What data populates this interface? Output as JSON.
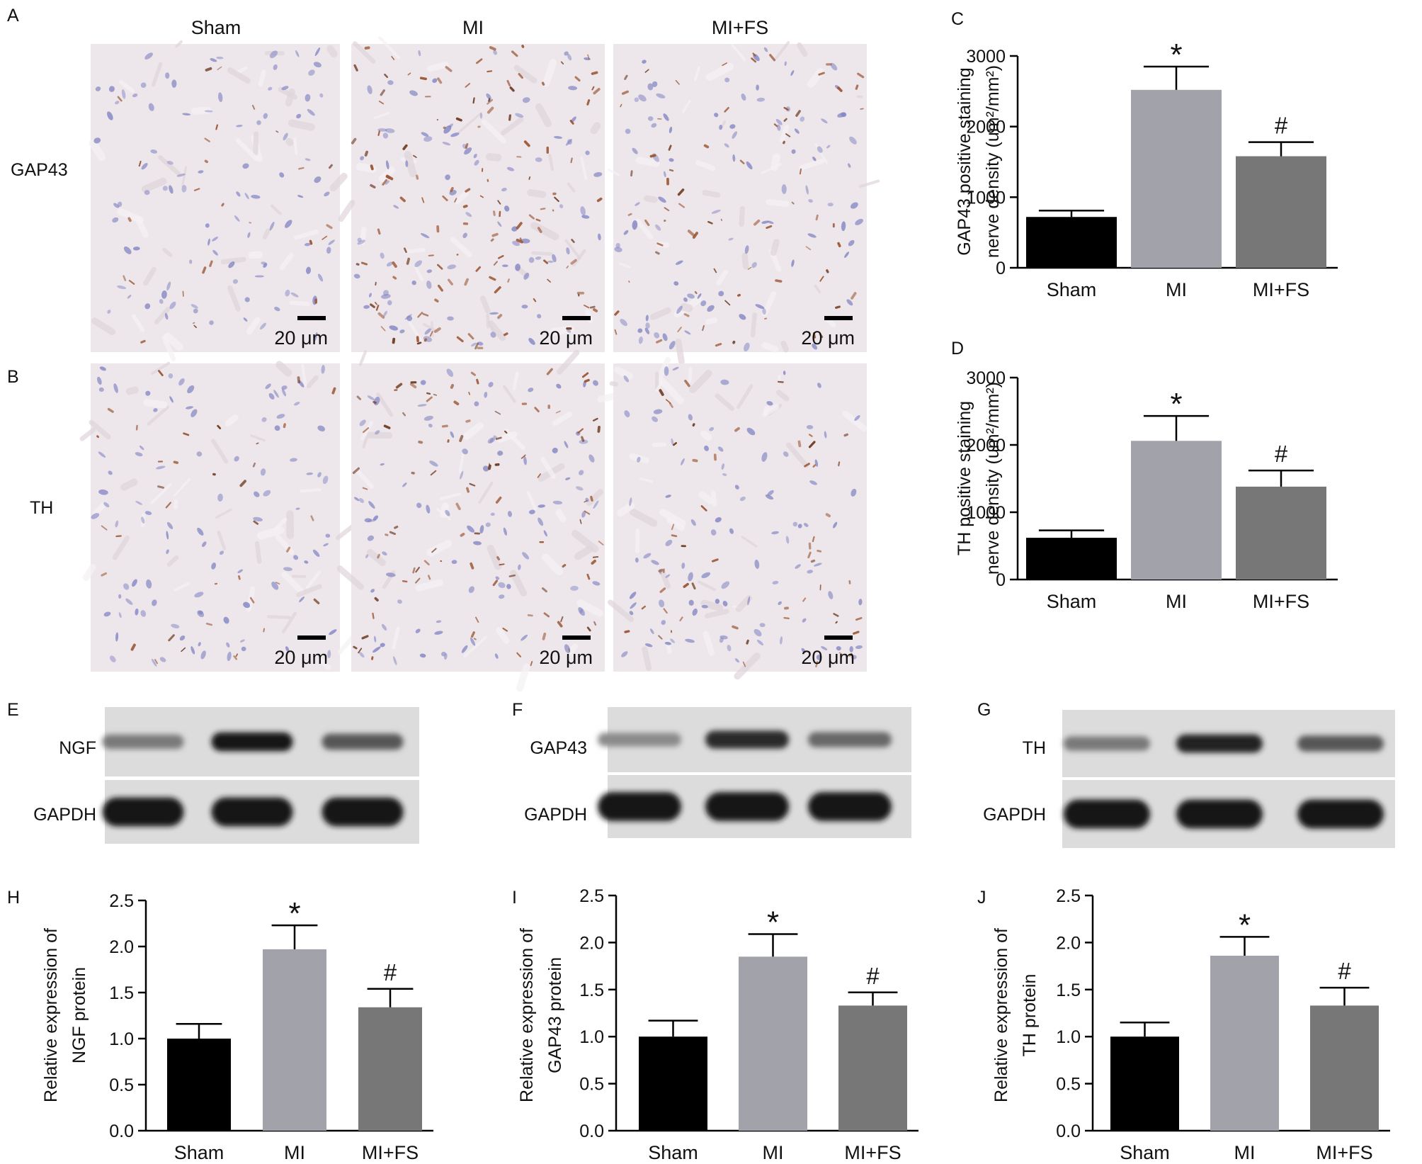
{
  "micrographs": {
    "panel_a": {
      "letter": "A",
      "row_label": "GAP43"
    },
    "panel_b": {
      "letter": "B",
      "row_label": "TH"
    },
    "columns": [
      "Sham",
      "MI",
      "MI+FS"
    ],
    "scale_label": "20 μm",
    "stain_density": {
      "A": [
        0.15,
        0.75,
        0.4
      ],
      "B": [
        0.2,
        0.55,
        0.3
      ]
    }
  },
  "blots": [
    {
      "letter": "E",
      "target": "NGF",
      "loading": "GAPDH",
      "target_intensity": [
        0.45,
        1.0,
        0.65
      ],
      "loading_intensity": [
        1.0,
        1.0,
        1.0
      ]
    },
    {
      "letter": "F",
      "target": "GAP43",
      "loading": "GAPDH",
      "target_intensity": [
        0.35,
        0.9,
        0.55
      ],
      "loading_intensity": [
        1.0,
        1.0,
        1.0
      ]
    },
    {
      "letter": "G",
      "target": "TH",
      "loading": "GAPDH",
      "target_intensity": [
        0.45,
        0.95,
        0.65
      ],
      "loading_intensity": [
        1.0,
        1.0,
        1.0
      ]
    }
  ],
  "colors": {
    "Sham": "#000000",
    "MI": "#a2a2aa",
    "MI+FS": "#777777"
  },
  "chart_data": [
    {
      "panel": "C",
      "type": "bar",
      "categories": [
        "Sham",
        "MI",
        "MI+FS"
      ],
      "values": [
        720,
        2520,
        1580
      ],
      "errors": [
        90,
        330,
        200
      ],
      "significance": [
        "",
        "*",
        "#"
      ],
      "ylabel": "GAP43 positive staining",
      "ylabel2": "nerve density (um²/mm²)",
      "ylim": [
        0,
        3000
      ],
      "yticks": [
        0,
        1000,
        2000,
        3000
      ],
      "tick_format": "int"
    },
    {
      "panel": "D",
      "type": "bar",
      "categories": [
        "Sham",
        "MI",
        "MI+FS"
      ],
      "values": [
        620,
        2060,
        1380
      ],
      "errors": [
        110,
        370,
        240
      ],
      "significance": [
        "",
        "*",
        "#"
      ],
      "ylabel": "TH positive staining",
      "ylabel2": "nerve density (um²/mm²)",
      "ylim": [
        0,
        3000
      ],
      "yticks": [
        0,
        1000,
        2000,
        3000
      ],
      "tick_format": "int"
    },
    {
      "panel": "H",
      "type": "bar",
      "categories": [
        "Sham",
        "MI",
        "MI+FS"
      ],
      "values": [
        1.0,
        1.97,
        1.34
      ],
      "errors": [
        0.16,
        0.26,
        0.2
      ],
      "significance": [
        "",
        "*",
        "#"
      ],
      "ylabel": "Relative expression of",
      "ylabel2": "NGF protein",
      "ylim": [
        0,
        2.5
      ],
      "yticks": [
        0,
        0.5,
        1.0,
        1.5,
        2.0,
        2.5
      ],
      "tick_format": "1dp"
    },
    {
      "panel": "I",
      "type": "bar",
      "categories": [
        "Sham",
        "MI",
        "MI+FS"
      ],
      "values": [
        1.0,
        1.85,
        1.33
      ],
      "errors": [
        0.17,
        0.24,
        0.14
      ],
      "significance": [
        "",
        "*",
        "#"
      ],
      "ylabel": "Relative expression of",
      "ylabel2": "GAP43 protein",
      "ylim": [
        0,
        2.5
      ],
      "yticks": [
        0,
        0.5,
        1.0,
        1.5,
        2.0,
        2.5
      ],
      "tick_format": "1dp"
    },
    {
      "panel": "J",
      "type": "bar",
      "categories": [
        "Sham",
        "MI",
        "MI+FS"
      ],
      "values": [
        1.0,
        1.86,
        1.33
      ],
      "errors": [
        0.15,
        0.2,
        0.19
      ],
      "significance": [
        "",
        "*",
        "#"
      ],
      "ylabel": "Relative expression of",
      "ylabel2": "TH protein",
      "ylim": [
        0,
        2.5
      ],
      "yticks": [
        0,
        0.5,
        1.0,
        1.5,
        2.0,
        2.5
      ],
      "tick_format": "1dp"
    }
  ]
}
